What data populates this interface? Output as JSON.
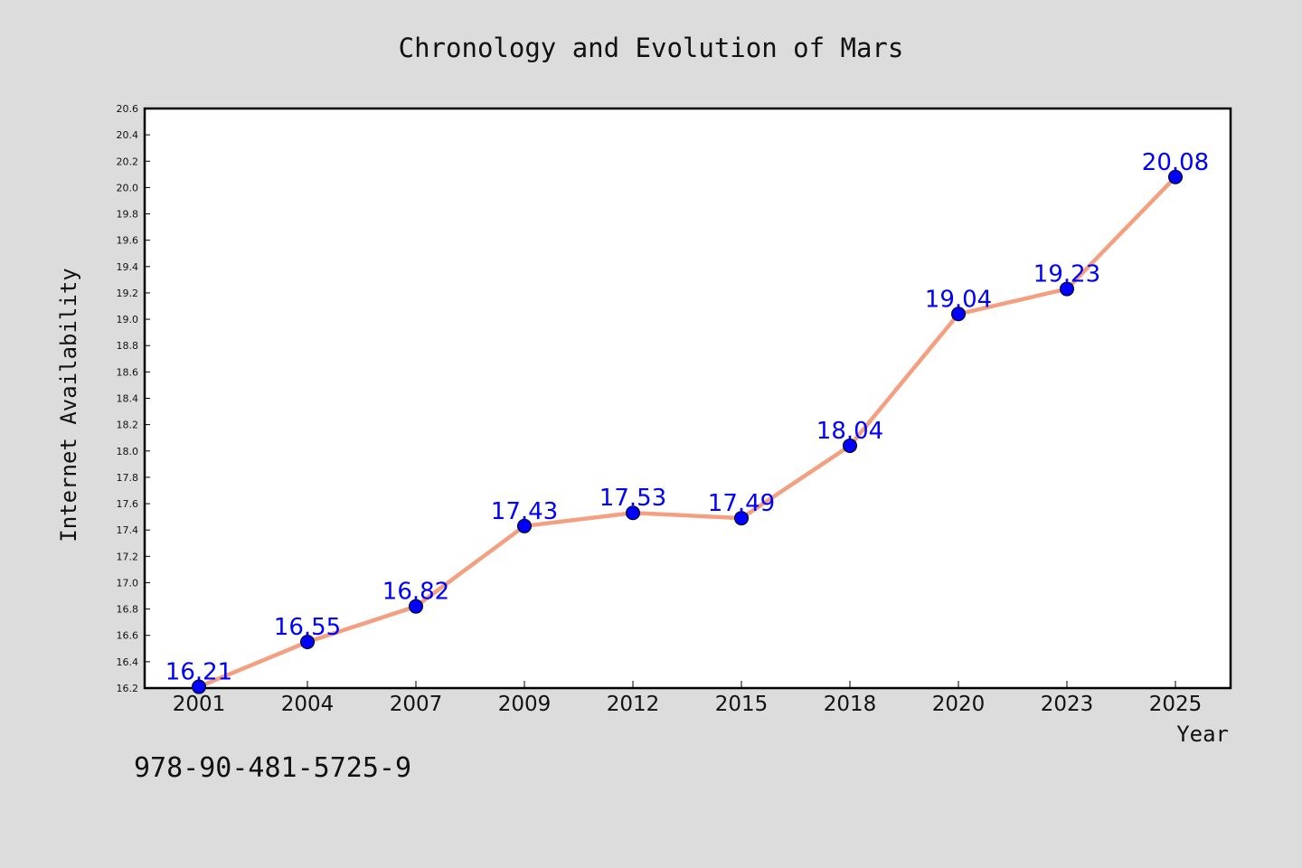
{
  "footer": {
    "code": "978-90-481-5725-9"
  },
  "colors": {
    "background": "#dcdcdc",
    "plot_bg": "#ffffff",
    "line": "#f4a080",
    "marker": "#0000ff",
    "label": "#0000ff"
  },
  "chart_data": {
    "type": "line",
    "title": "Chronology and Evolution of Mars",
    "xlabel": "Year",
    "ylabel": "Internet Availability",
    "categories": [
      "2001",
      "2004",
      "2007",
      "2009",
      "2012",
      "2015",
      "2018",
      "2020",
      "2023",
      "2025"
    ],
    "series": [
      {
        "values": [
          16.21,
          16.55,
          16.82,
          17.43,
          17.53,
          17.49,
          18.04,
          19.04,
          19.23,
          20.08
        ]
      }
    ],
    "data_labels": [
      "16.21",
      "16.55",
      "16.82",
      "17.43",
      "17.53",
      "17.49",
      "18.04",
      "19.04",
      "19.23",
      "20.08"
    ],
    "ylim": [
      16.2,
      20.6
    ],
    "yticks": [
      "16.2",
      "16.4",
      "16.6",
      "16.8",
      "17.0",
      "17.2",
      "17.4",
      "17.6",
      "17.8",
      "18.0",
      "18.2",
      "18.4",
      "18.6",
      "18.8",
      "19.0",
      "19.2",
      "19.4",
      "19.6",
      "19.8",
      "20.0",
      "20.2",
      "20.4",
      "20.6"
    ],
    "grid": false,
    "legend": "none"
  }
}
